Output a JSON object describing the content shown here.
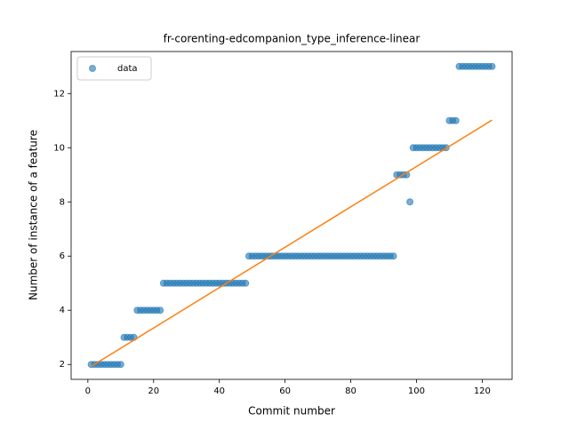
{
  "chart_data": {
    "type": "scatter",
    "title": "fr-corenting-edcompanion_type_inference-linear",
    "xlabel": "Commit number",
    "ylabel": "Number of instance of a feature",
    "xlim": [
      -5.1,
      129.1
    ],
    "ylim": [
      1.45,
      13.55
    ],
    "xticks": [
      0,
      20,
      40,
      60,
      80,
      100,
      120
    ],
    "yticks": [
      2,
      4,
      6,
      8,
      10,
      12
    ],
    "legend": "upper left",
    "series": [
      {
        "name": "data",
        "color": "#1f77b4",
        "style": "markers",
        "x": [
          1,
          2,
          3,
          4,
          5,
          6,
          7,
          8,
          9,
          10,
          11,
          12,
          13,
          14,
          15,
          16,
          17,
          18,
          19,
          20,
          21,
          22,
          23,
          24,
          25,
          26,
          27,
          28,
          29,
          30,
          31,
          32,
          33,
          34,
          35,
          36,
          37,
          38,
          39,
          40,
          41,
          42,
          43,
          44,
          45,
          46,
          47,
          48,
          49,
          50,
          51,
          52,
          53,
          54,
          55,
          56,
          57,
          58,
          59,
          60,
          61,
          62,
          63,
          64,
          65,
          66,
          67,
          68,
          69,
          70,
          71,
          72,
          73,
          74,
          75,
          76,
          77,
          78,
          79,
          80,
          81,
          82,
          83,
          84,
          85,
          86,
          87,
          88,
          89,
          90,
          91,
          92,
          93,
          94,
          95,
          96,
          97,
          98,
          99,
          100,
          101,
          102,
          103,
          104,
          105,
          106,
          107,
          108,
          109,
          110,
          111,
          112,
          113,
          114,
          115,
          116,
          117,
          118,
          119,
          120,
          121,
          122,
          123
        ],
        "values": [
          2,
          2,
          2,
          2,
          2,
          2,
          2,
          2,
          2,
          2,
          3,
          3,
          3,
          3,
          4,
          4,
          4,
          4,
          4,
          4,
          4,
          4,
          5,
          5,
          5,
          5,
          5,
          5,
          5,
          5,
          5,
          5,
          5,
          5,
          5,
          5,
          5,
          5,
          5,
          5,
          5,
          5,
          5,
          5,
          5,
          5,
          5,
          5,
          6,
          6,
          6,
          6,
          6,
          6,
          6,
          6,
          6,
          6,
          6,
          6,
          6,
          6,
          6,
          6,
          6,
          6,
          6,
          6,
          6,
          6,
          6,
          6,
          6,
          6,
          6,
          6,
          6,
          6,
          6,
          6,
          6,
          6,
          6,
          6,
          6,
          6,
          6,
          6,
          6,
          6,
          6,
          6,
          6,
          9,
          9,
          9,
          9,
          8,
          10,
          10,
          10,
          10,
          10,
          10,
          10,
          10,
          10,
          10,
          10,
          11,
          11,
          11,
          13,
          13,
          13,
          13,
          13,
          13,
          13,
          13,
          13,
          13,
          13
        ]
      },
      {
        "color": "#ff7f0e",
        "style": "line",
        "x": [
          1,
          123
        ],
        "values": [
          1.93,
          11.02
        ]
      }
    ]
  }
}
